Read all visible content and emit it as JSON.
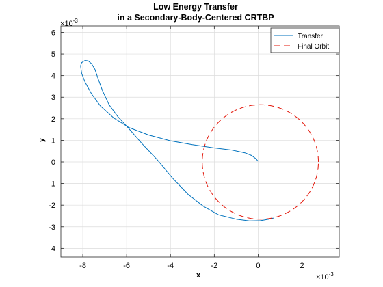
{
  "chart_data": {
    "type": "line",
    "title": [
      "Low Energy Transfer",
      "in a Secondary-Body-Centered CRTBP"
    ],
    "xlabel": "x",
    "ylabel": "y",
    "x_multiplier": "10",
    "x_multiplier_exp": "-3",
    "y_multiplier": "10",
    "y_multiplier_exp": "-3",
    "xlim": [
      -9,
      3.7
    ],
    "ylim": [
      -4.4,
      6.3
    ],
    "xticks": [
      -8,
      -6,
      -4,
      -2,
      0,
      2
    ],
    "xtick_labels": [
      "-8",
      "-6",
      "-4",
      "-2",
      "0",
      "2"
    ],
    "yticks": [
      -4,
      -3,
      -2,
      -1,
      0,
      1,
      2,
      3,
      4,
      5,
      6
    ],
    "ytick_labels": [
      "-4",
      "-3",
      "-2",
      "-1",
      "0",
      "1",
      "2",
      "3",
      "4",
      "5",
      "6"
    ],
    "grid": true,
    "legend_position": "top-right",
    "series": [
      {
        "name": "Transfer",
        "color": "#0072BD",
        "style": "solid",
        "x": [
          0.0,
          -0.1,
          -0.3,
          -0.6,
          -1.2,
          -2.0,
          -3.0,
          -4.0,
          -5.0,
          -5.9,
          -6.6,
          -7.2,
          -7.6,
          -7.9,
          -8.05,
          -8.1,
          -8.05,
          -7.9,
          -7.75,
          -7.6,
          -7.45,
          -7.3,
          -7.1,
          -6.8,
          -6.4,
          -5.9,
          -5.3,
          -4.6,
          -3.9,
          -3.2,
          -2.5,
          -1.8,
          -1.0,
          -0.4,
          0.1,
          0.5,
          0.7
        ],
        "y": [
          0.03,
          0.15,
          0.3,
          0.42,
          0.55,
          0.65,
          0.8,
          0.98,
          1.25,
          1.6,
          2.05,
          2.6,
          3.15,
          3.7,
          4.1,
          4.45,
          4.6,
          4.7,
          4.68,
          4.55,
          4.3,
          3.85,
          3.3,
          2.65,
          2.1,
          1.55,
          0.85,
          0.1,
          -0.75,
          -1.5,
          -2.05,
          -2.45,
          -2.65,
          -2.73,
          -2.72,
          -2.65,
          -2.6
        ]
      },
      {
        "name": "Final Orbit",
        "color": "#E3170A",
        "style": "dashed",
        "circle": {
          "cx": 0.1,
          "cy": 0,
          "r": 2.65
        }
      }
    ]
  }
}
